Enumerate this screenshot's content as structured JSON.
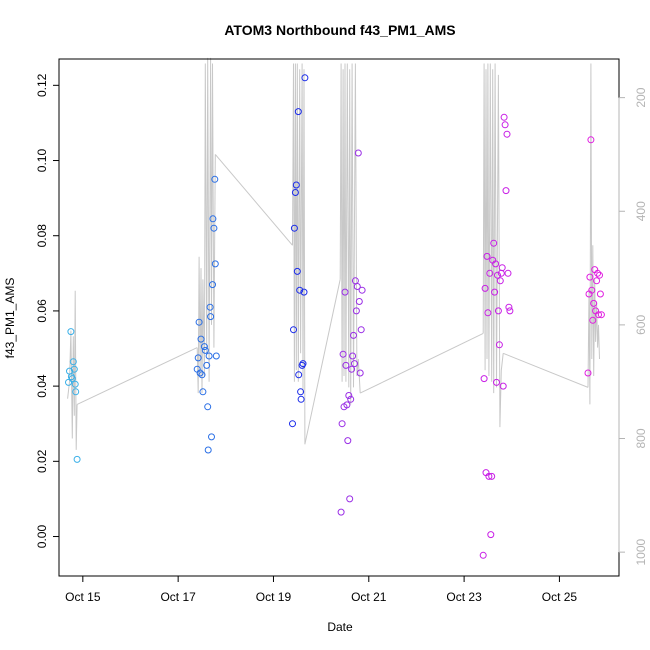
{
  "chart_data": {
    "type": "scatter",
    "title": "ATOM3 Northbound f43_PM1_AMS",
    "xlabel": "Date",
    "ylabel": "f43_PM1_AMS",
    "xlim": [
      14.5,
      26.25
    ],
    "ylim": [
      -0.0105,
      0.127
    ],
    "x_ticks": [
      {
        "value": 15,
        "label": "Oct 15"
      },
      {
        "value": 17,
        "label": "Oct 17"
      },
      {
        "value": 19,
        "label": "Oct 19"
      },
      {
        "value": 21,
        "label": "Oct 21"
      },
      {
        "value": 23,
        "label": "Oct 23"
      },
      {
        "value": 25,
        "label": "Oct 25"
      }
    ],
    "y_ticks": [
      0.0,
      0.02,
      0.04,
      0.06,
      0.08,
      0.1,
      0.12
    ],
    "y_tick_labels": [
      "0.00",
      "0.02",
      "0.04",
      "0.06",
      "0.08",
      "0.10",
      "0.12"
    ],
    "right_axis": {
      "ylim": [
        1042,
        132
      ],
      "ticks": [
        200,
        400,
        600,
        800,
        1000
      ],
      "color": "#b4b4b4",
      "note": "secondary axis, inverted (altitude/pressure)"
    },
    "grid": false,
    "legend": "none",
    "series": [
      {
        "color": "#3ab0e8",
        "points": [
          [
            14.7,
            0.041
          ],
          [
            14.72,
            0.044
          ],
          [
            14.75,
            0.0545
          ],
          [
            14.76,
            0.0425
          ],
          [
            14.78,
            0.042
          ],
          [
            14.8,
            0.0465
          ],
          [
            14.82,
            0.0445
          ],
          [
            14.84,
            0.0405
          ],
          [
            14.85,
            0.0385
          ],
          [
            14.88,
            0.0205
          ]
        ]
      },
      {
        "color": "#2a6fe6",
        "points": [
          [
            17.4,
            0.0445
          ],
          [
            17.42,
            0.0475
          ],
          [
            17.44,
            0.057
          ],
          [
            17.46,
            0.0435
          ],
          [
            17.48,
            0.0525
          ],
          [
            17.5,
            0.043
          ],
          [
            17.52,
            0.0385
          ],
          [
            17.55,
            0.0505
          ],
          [
            17.57,
            0.0495
          ],
          [
            17.6,
            0.0455
          ],
          [
            17.62,
            0.0345
          ],
          [
            17.63,
            0.023
          ],
          [
            17.65,
            0.048
          ],
          [
            17.67,
            0.061
          ],
          [
            17.68,
            0.0585
          ],
          [
            17.7,
            0.0265
          ],
          [
            17.72,
            0.067
          ],
          [
            17.73,
            0.0845
          ],
          [
            17.75,
            0.082
          ],
          [
            17.77,
            0.095
          ],
          [
            17.78,
            0.0725
          ],
          [
            17.8,
            0.048
          ]
        ]
      },
      {
        "color": "#1a2bea",
        "points": [
          [
            19.4,
            0.03
          ],
          [
            19.42,
            0.055
          ],
          [
            19.44,
            0.082
          ],
          [
            19.46,
            0.0915
          ],
          [
            19.48,
            0.0935
          ],
          [
            19.5,
            0.0705
          ],
          [
            19.52,
            0.113
          ],
          [
            19.53,
            0.043
          ],
          [
            19.55,
            0.0655
          ],
          [
            19.57,
            0.0385
          ],
          [
            19.58,
            0.0365
          ],
          [
            19.6,
            0.0455
          ],
          [
            19.62,
            0.046
          ],
          [
            19.64,
            0.065
          ],
          [
            19.66,
            0.122
          ]
        ]
      },
      {
        "color": "#9a2ee6",
        "points": [
          [
            20.42,
            0.0065
          ],
          [
            20.44,
            0.03
          ],
          [
            20.46,
            0.0485
          ],
          [
            20.48,
            0.0345
          ],
          [
            20.5,
            0.065
          ],
          [
            20.52,
            0.0455
          ],
          [
            20.54,
            0.035
          ],
          [
            20.56,
            0.0255
          ],
          [
            20.58,
            0.0375
          ],
          [
            20.6,
            0.01
          ],
          [
            20.62,
            0.0365
          ],
          [
            20.64,
            0.0445
          ],
          [
            20.66,
            0.048
          ],
          [
            20.68,
            0.0535
          ],
          [
            20.7,
            0.046
          ],
          [
            20.72,
            0.068
          ],
          [
            20.74,
            0.06
          ],
          [
            20.76,
            0.0665
          ],
          [
            20.78,
            0.102
          ],
          [
            20.8,
            0.0625
          ],
          [
            20.82,
            0.0435
          ],
          [
            20.84,
            0.055
          ],
          [
            20.86,
            0.0655
          ]
        ]
      },
      {
        "color": "#c81ee6",
        "points": [
          [
            23.4,
            -0.005
          ],
          [
            23.42,
            0.042
          ],
          [
            23.44,
            0.066
          ],
          [
            23.46,
            0.017
          ],
          [
            23.48,
            0.0745
          ],
          [
            23.5,
            0.0595
          ],
          [
            23.52,
            0.016
          ],
          [
            23.54,
            0.07
          ],
          [
            23.56,
            0.0005
          ],
          [
            23.58,
            0.016
          ],
          [
            23.6,
            0.0735
          ],
          [
            23.62,
            0.078
          ],
          [
            23.64,
            0.065
          ],
          [
            23.66,
            0.0725
          ],
          [
            23.68,
            0.041
          ],
          [
            23.7,
            0.0695
          ],
          [
            23.72,
            0.06
          ],
          [
            23.74,
            0.051
          ],
          [
            23.76,
            0.068
          ],
          [
            23.78,
            0.07
          ],
          [
            23.8,
            0.0715
          ],
          [
            23.82,
            0.04
          ],
          [
            23.84,
            0.1115
          ],
          [
            23.86,
            0.1095
          ],
          [
            23.88,
            0.092
          ],
          [
            23.9,
            0.107
          ],
          [
            23.92,
            0.07
          ],
          [
            23.94,
            0.061
          ],
          [
            23.96,
            0.06
          ]
        ]
      },
      {
        "color": "#e01ee0",
        "points": [
          [
            25.6,
            0.0435
          ],
          [
            25.62,
            0.0645
          ],
          [
            25.64,
            0.069
          ],
          [
            25.66,
            0.1055
          ],
          [
            25.68,
            0.0655
          ],
          [
            25.7,
            0.0575
          ],
          [
            25.72,
            0.062
          ],
          [
            25.74,
            0.071
          ],
          [
            25.76,
            0.06
          ],
          [
            25.78,
            0.068
          ],
          [
            25.8,
            0.07
          ],
          [
            25.82,
            0.059
          ],
          [
            25.84,
            0.0695
          ],
          [
            25.86,
            0.0645
          ],
          [
            25.88,
            0.059
          ]
        ]
      }
    ],
    "altitude_trace": {
      "color": "#c8c8c8",
      "segments": [
        [
          [
            14.68,
            730
          ],
          [
            14.72,
            700
          ],
          [
            14.75,
            610
          ],
          [
            14.78,
            800
          ],
          [
            14.8,
            620
          ],
          [
            14.82,
            760
          ],
          [
            14.84,
            540
          ],
          [
            14.86,
            820
          ],
          [
            14.88,
            740
          ]
        ],
        [
          [
            14.88,
            740
          ],
          [
            17.4,
            640
          ]
        ],
        [
          [
            17.4,
            640
          ],
          [
            17.42,
            720
          ],
          [
            17.44,
            480
          ],
          [
            17.46,
            690
          ],
          [
            17.48,
            500
          ],
          [
            17.5,
            720
          ],
          [
            17.52,
            520
          ],
          [
            17.55,
            690
          ],
          [
            17.57,
            140
          ],
          [
            17.6,
            650
          ],
          [
            17.62,
            130
          ],
          [
            17.65,
            700
          ],
          [
            17.68,
            130
          ],
          [
            17.7,
            600
          ],
          [
            17.72,
            140
          ],
          [
            17.75,
            640
          ],
          [
            17.78,
            300
          ]
        ],
        [
          [
            17.78,
            300
          ],
          [
            19.4,
            460
          ]
        ],
        [
          [
            19.4,
            460
          ],
          [
            19.42,
            140
          ],
          [
            19.44,
            700
          ],
          [
            19.46,
            140
          ],
          [
            19.48,
            680
          ],
          [
            19.5,
            140
          ],
          [
            19.52,
            700
          ],
          [
            19.55,
            150
          ],
          [
            19.57,
            650
          ],
          [
            19.6,
            140
          ],
          [
            19.62,
            720
          ],
          [
            19.64,
            150
          ],
          [
            19.66,
            810
          ]
        ],
        [
          [
            19.66,
            810
          ],
          [
            20.4,
            520
          ]
        ],
        [
          [
            20.4,
            520
          ],
          [
            20.42,
            140
          ],
          [
            20.44,
            700
          ],
          [
            20.46,
            150
          ],
          [
            20.48,
            690
          ],
          [
            20.5,
            140
          ],
          [
            20.52,
            700
          ],
          [
            20.55,
            140
          ],
          [
            20.58,
            710
          ],
          [
            20.6,
            150
          ],
          [
            20.62,
            740
          ],
          [
            20.65,
            140
          ],
          [
            20.68,
            710
          ],
          [
            20.72,
            140
          ],
          [
            20.75,
            690
          ],
          [
            20.78,
            660
          ],
          [
            20.82,
            720
          ]
        ],
        [
          [
            20.82,
            720
          ],
          [
            23.4,
            615
          ]
        ],
        [
          [
            23.4,
            615
          ],
          [
            23.42,
            140
          ],
          [
            23.44,
            680
          ],
          [
            23.46,
            150
          ],
          [
            23.48,
            660
          ],
          [
            23.5,
            140
          ],
          [
            23.52,
            690
          ],
          [
            23.55,
            140
          ],
          [
            23.58,
            700
          ],
          [
            23.6,
            150
          ],
          [
            23.62,
            720
          ],
          [
            23.65,
            140
          ],
          [
            23.68,
            710
          ],
          [
            23.72,
            160
          ],
          [
            23.75,
            780
          ],
          [
            23.78,
            680
          ],
          [
            23.82,
            650
          ]
        ],
        [
          [
            23.82,
            650
          ],
          [
            25.6,
            710
          ]
        ],
        [
          [
            25.6,
            710
          ],
          [
            25.62,
            540
          ],
          [
            25.64,
            740
          ],
          [
            25.66,
            140
          ],
          [
            25.68,
            660
          ],
          [
            25.7,
            460
          ],
          [
            25.72,
            690
          ],
          [
            25.74,
            520
          ],
          [
            25.76,
            630
          ],
          [
            25.78,
            560
          ],
          [
            25.8,
            640
          ],
          [
            25.82,
            600
          ],
          [
            25.84,
            660
          ]
        ]
      ]
    }
  }
}
